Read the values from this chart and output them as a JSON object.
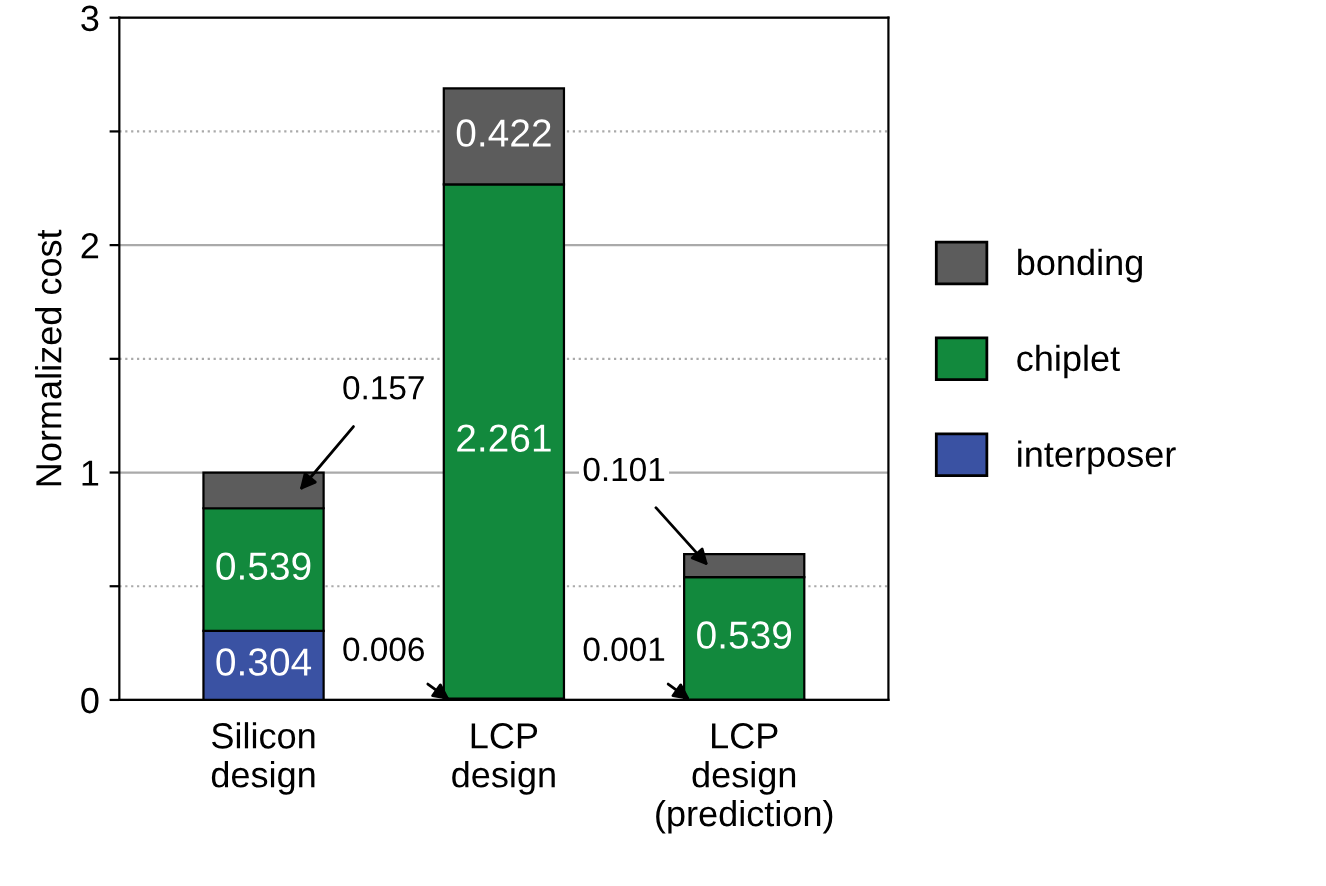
{
  "chart_data": {
    "type": "bar",
    "stacked": true,
    "ylabel": "Normalized cost",
    "categories": [
      "Silicon\ndesign",
      "LCP\ndesign",
      "LCP\ndesign\n(prediction)"
    ],
    "series": [
      {
        "name": "interposer",
        "color": "#3a52a3",
        "values": [
          0.304,
          0.006,
          0.001
        ]
      },
      {
        "name": "chiplet",
        "color": "#12893d",
        "values": [
          0.539,
          2.261,
          0.539
        ]
      },
      {
        "name": "bonding",
        "color": "#5c5c5c",
        "values": [
          0.157,
          0.422,
          0.101
        ]
      }
    ],
    "data_labels": true,
    "ylim": [
      0,
      3
    ],
    "yticks": [
      0,
      {
        "value": 0.5,
        "label": null
      },
      1,
      {
        "value": 1.5,
        "label": null
      },
      2,
      {
        "value": 2.5,
        "label": null
      },
      3
    ],
    "grid": "y",
    "legend": "right"
  }
}
